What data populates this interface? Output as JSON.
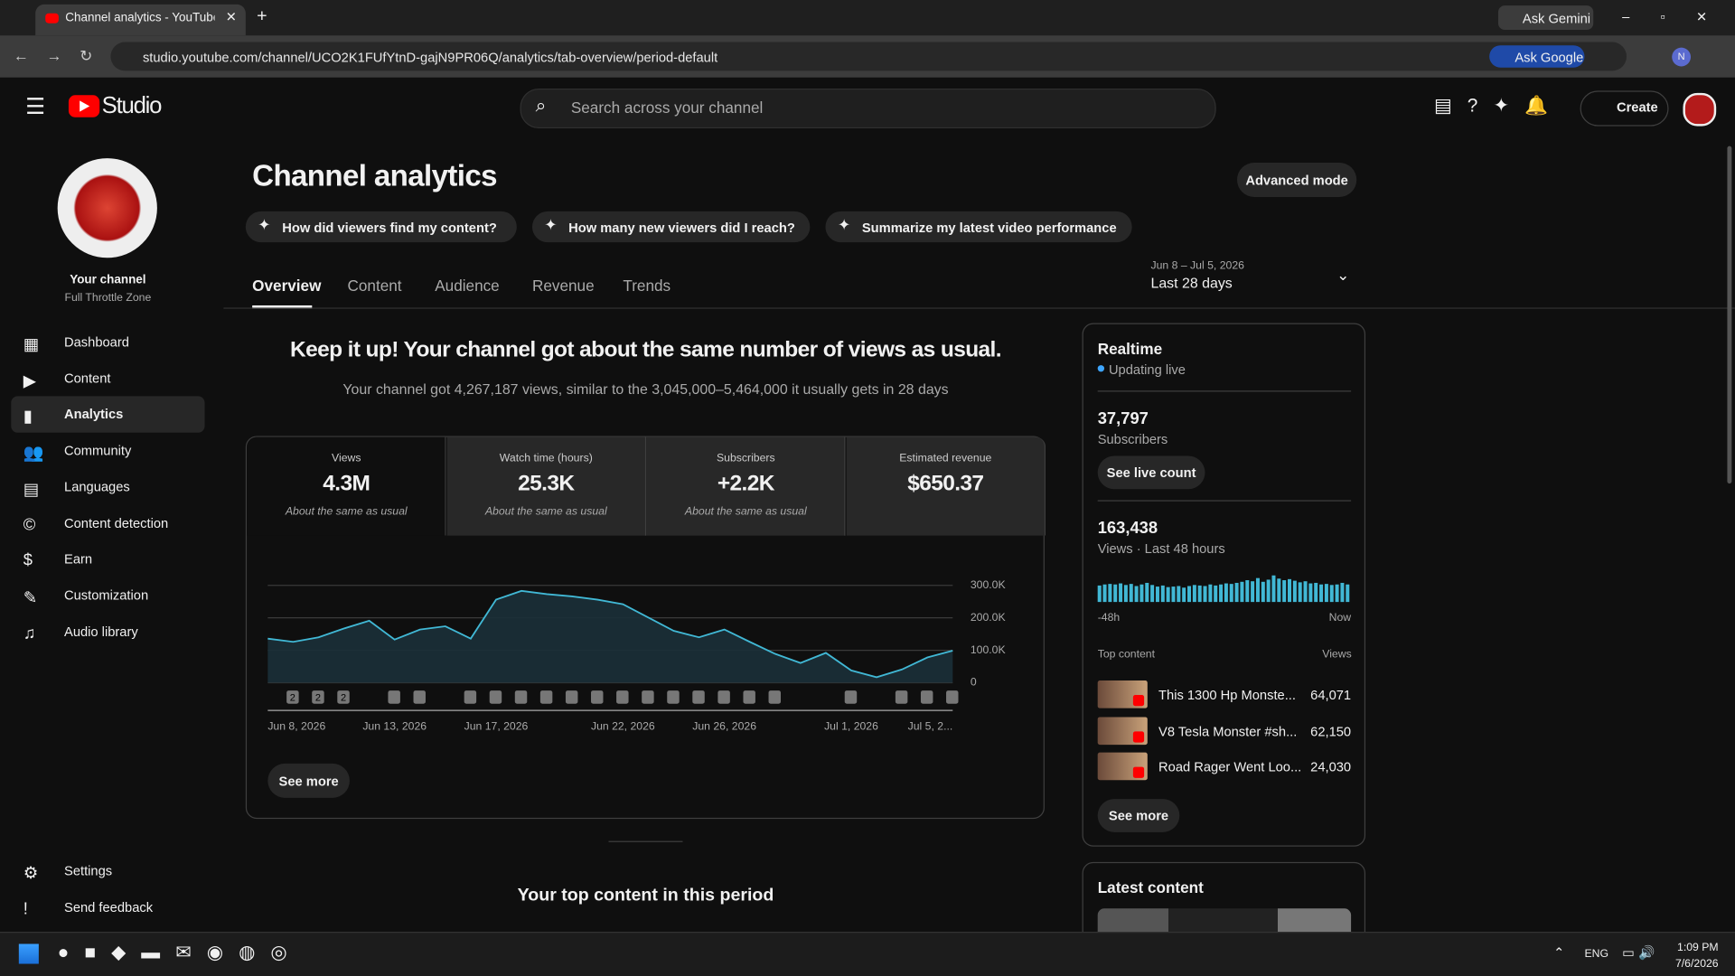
{
  "browser": {
    "tab_title": "Channel analytics - YouTube Studio",
    "url": "studio.youtube.com/channel/UCO2K1FUfYtnD-gajN9PR06Q/analytics/tab-overview/period-default",
    "ask_gemini": "Ask Gemini",
    "ask_google": "Ask Google",
    "profile": "N"
  },
  "header": {
    "logo": "Studio",
    "search": "Search across your channel",
    "create": "Create"
  },
  "sidebar": {
    "your_channel": "Your channel",
    "channel_name": "Full Throttle Zone",
    "nav": [
      "Dashboard",
      "Content",
      "Analytics",
      "Community",
      "Languages",
      "Content detection",
      "Earn",
      "Customization",
      "Audio library"
    ],
    "footer": [
      "Settings",
      "Send feedback"
    ]
  },
  "page": {
    "title": "Channel analytics",
    "advanced": "Advanced mode",
    "prompts": [
      "How did viewers find my content?",
      "How many new viewers did I reach?",
      "Summarize my latest video performance"
    ],
    "tabs": [
      "Overview",
      "Content",
      "Audience",
      "Revenue",
      "Trends"
    ],
    "date_range": "Jun 8 – Jul 5, 2026",
    "period": "Last 28 days",
    "headline": "Keep it up! Your channel got about the same number of views as usual.",
    "subtext": "Your channel got 4,267,187 views, similar to the 3,045,000–5,464,000 it usually gets in 28 days",
    "see_more": "See more",
    "top_content_heading": "Your top content in this period"
  },
  "metrics": [
    {
      "label": "Views",
      "value": "4.3M",
      "note": "About the same as usual"
    },
    {
      "label": "Watch time (hours)",
      "value": "25.3K",
      "note": "About the same as usual"
    },
    {
      "label": "Subscribers",
      "value": "+2.2K",
      "note": "About the same as usual"
    },
    {
      "label": "Estimated revenue",
      "value": "$650.37"
    }
  ],
  "chart": {
    "type": "line",
    "ylim": [
      0,
      300000
    ],
    "yticks": [
      {
        "value": 0,
        "label": "0"
      },
      {
        "value": 100000,
        "label": "100.0K"
      },
      {
        "value": 200000,
        "label": "200.0K"
      },
      {
        "value": 300000,
        "label": "300.0K"
      }
    ],
    "grid": true,
    "color": "#41b8d5",
    "categories": [
      "Jun 8, 2026",
      null,
      null,
      null,
      null,
      "Jun 13, 2026",
      null,
      null,
      null,
      "Jun 17, 2026",
      null,
      null,
      null,
      null,
      "Jun 22, 2026",
      null,
      null,
      null,
      "Jun 26, 2026",
      null,
      null,
      null,
      null,
      "Jul 1, 2026",
      null,
      null,
      null,
      "Jul 5, 2..."
    ],
    "values": [
      136000,
      126000,
      140000,
      167000,
      191000,
      133000,
      164000,
      174000,
      136000,
      256000,
      283000,
      273000,
      266000,
      256000,
      242000,
      201000,
      160000,
      140000,
      164000,
      126000,
      89000,
      61000,
      92000,
      38000,
      17000,
      41000,
      78000,
      99000
    ],
    "marker_labels": [
      "2",
      "2",
      "2"
    ]
  },
  "realtime": {
    "title": "Realtime",
    "status": "Updating live",
    "subscribers": "37,797",
    "subscribers_label": "Subscribers",
    "see_live": "See live count",
    "views": "163,438",
    "views_label": "Views · Last 48 hours",
    "hourly_views": [
      3100,
      3300,
      3400,
      3300,
      3500,
      3200,
      3400,
      3000,
      3300,
      3600,
      3200,
      2900,
      3100,
      2800,
      2900,
      3000,
      2700,
      3000,
      3200,
      3100,
      3000,
      3300,
      3100,
      3300,
      3500,
      3400,
      3600,
      3800,
      4100,
      3900,
      4500,
      3800,
      4200,
      5000,
      4400,
      4100,
      4300,
      4000,
      3700,
      3900,
      3500,
      3600,
      3300,
      3400,
      3200,
      3300,
      3600,
      3300
    ],
    "axis_start": "-48h",
    "axis_end": "Now",
    "top_content": "Top content",
    "views_header": "Views",
    "items": [
      {
        "title": "This 1300 Hp Monste...",
        "views": "64,071"
      },
      {
        "title": "V8 Tesla Monster #sh...",
        "views": "62,150"
      },
      {
        "title": "Road Rager Went Loo...",
        "views": "24,030"
      }
    ],
    "see_more": "See more"
  },
  "latest": {
    "title": "Latest content"
  },
  "taskbar": {
    "lang": "ENG",
    "time": "1:09 PM",
    "date": "7/6/2026"
  }
}
